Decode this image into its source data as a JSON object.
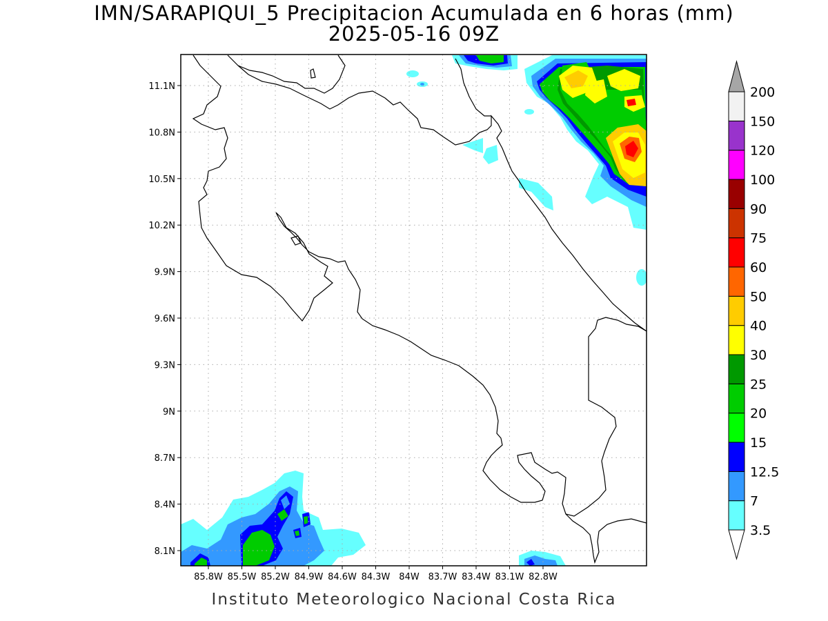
{
  "title_line1": "IMN/SARAPIQUI_5 Precipitacion Acumulada en 6 horas (mm)",
  "title_line2": "2025-05-16 09Z",
  "footer": "Instituto Meteorologico Nacional Costa Rica",
  "map": {
    "lon_ticks": [
      "85.8W",
      "85.5W",
      "85.2W",
      "84.9W",
      "84.6W",
      "84.3W",
      "84W",
      "83.7W",
      "83.4W",
      "83.1W",
      "82.8W"
    ],
    "lat_ticks": [
      "11.1N",
      "10.8N",
      "10.5N",
      "10.2N",
      "9.9N",
      "9.6N",
      "9.3N",
      "9N",
      "8.7N",
      "8.4N",
      "8.1N"
    ],
    "gridlines": "dotted"
  },
  "colorbar": {
    "levels": [
      "3.5",
      "7",
      "12.5",
      "15",
      "20",
      "25",
      "30",
      "40",
      "50",
      "60",
      "75",
      "90",
      "100",
      "120",
      "150",
      "200"
    ],
    "colors": [
      "#66ffff",
      "#3399ff",
      "#0000ff",
      "#00ff00",
      "#00cc00",
      "#009900",
      "#ffff00",
      "#ffcc00",
      "#ff6600",
      "#ff0000",
      "#cc3300",
      "#990000",
      "#ff00ff",
      "#9933cc",
      "#f2f2f2"
    ],
    "under_arrow_color": "#ffffff",
    "over_arrow_color": "#a6a6a6"
  }
}
